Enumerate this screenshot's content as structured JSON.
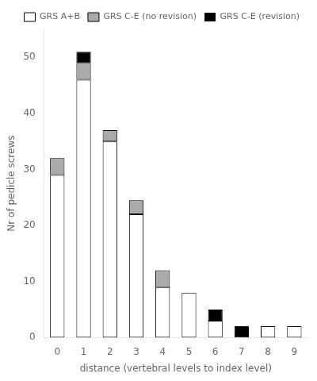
{
  "chart_data": {
    "type": "bar",
    "stacked": true,
    "categories": [
      0,
      1,
      2,
      3,
      4,
      5,
      6,
      7,
      8,
      9
    ],
    "series": [
      {
        "name": "GRS A+B",
        "color": "#ffffff",
        "values": [
          29,
          46,
          35,
          22,
          9,
          8,
          3,
          0,
          2,
          2
        ]
      },
      {
        "name": "GRS C-E (no revision)",
        "color": "#aaaaaa",
        "values": [
          3,
          3,
          2,
          2.5,
          3,
          0,
          0,
          0,
          0,
          0
        ]
      },
      {
        "name": "GRS C-E (revision)",
        "color": "#000000",
        "values": [
          0,
          2,
          0,
          0,
          0,
          0,
          2,
          2,
          0,
          0
        ]
      }
    ],
    "xlabel": "distance (vertebral levels to index level)",
    "ylabel": "Nr of pedicle screws",
    "ylim": [
      0,
      55
    ],
    "yticks": [
      0,
      10,
      20,
      30,
      40,
      50
    ],
    "grid": false,
    "legend": "upper right"
  }
}
